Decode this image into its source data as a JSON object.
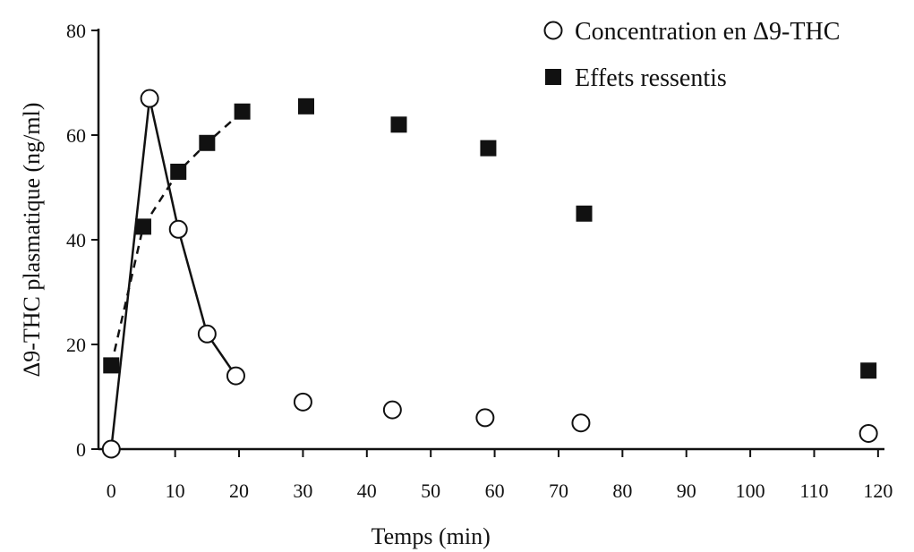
{
  "colors": {
    "ink": "#111111",
    "background": "#ffffff"
  },
  "chart_data": {
    "type": "scatter",
    "xlabel": "Temps (min)",
    "ylabel": "Δ9-THC plasmatique (ng/ml)",
    "xlim": [
      -2,
      121
    ],
    "ylim": [
      0,
      80
    ],
    "x_ticks": [
      0,
      10,
      20,
      30,
      40,
      50,
      60,
      70,
      80,
      90,
      100,
      110,
      120
    ],
    "y_ticks": [
      0,
      20,
      40,
      60,
      80
    ],
    "grid": false,
    "legend_position": "top-right",
    "series": [
      {
        "name": "Concentration en Δ9-THC",
        "marker": "open-circle",
        "line": "solid",
        "line_points": 5,
        "x": [
          0,
          6,
          10.5,
          15,
          19.5,
          30,
          44,
          58.5,
          73.5,
          118.5
        ],
        "y": [
          0,
          67,
          42,
          22,
          14,
          9,
          7.5,
          6,
          5,
          3
        ]
      },
      {
        "name": "Effets ressentis",
        "marker": "filled-square",
        "line": "dashed",
        "line_points": 5,
        "x": [
          0,
          5,
          10.5,
          15,
          20.5,
          30.5,
          45,
          59,
          74,
          118.5
        ],
        "y": [
          16,
          42.5,
          53,
          58.5,
          64.5,
          65.5,
          62,
          57.5,
          45,
          15
        ]
      }
    ]
  }
}
